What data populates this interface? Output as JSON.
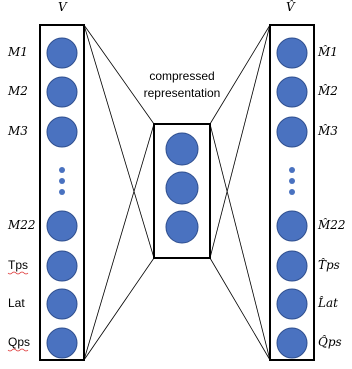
{
  "input_layer": {
    "title": "V",
    "labels": [
      "M1",
      "M2",
      "M3",
      "M22",
      "Tps",
      "Lat",
      "Qps"
    ]
  },
  "output_layer": {
    "title": "V̂",
    "labels": [
      "M̂1",
      "M̂2",
      "M̂3",
      "M̂22",
      "T̂ps",
      "L̂at",
      "Q̂ps"
    ]
  },
  "bottleneck": {
    "caption_line1": "compressed",
    "caption_line2": "representation"
  },
  "colors": {
    "node_fill": "#4a72c0",
    "node_stroke": "#2f4f8f",
    "box_stroke": "#000000",
    "edge": "#000000"
  }
}
